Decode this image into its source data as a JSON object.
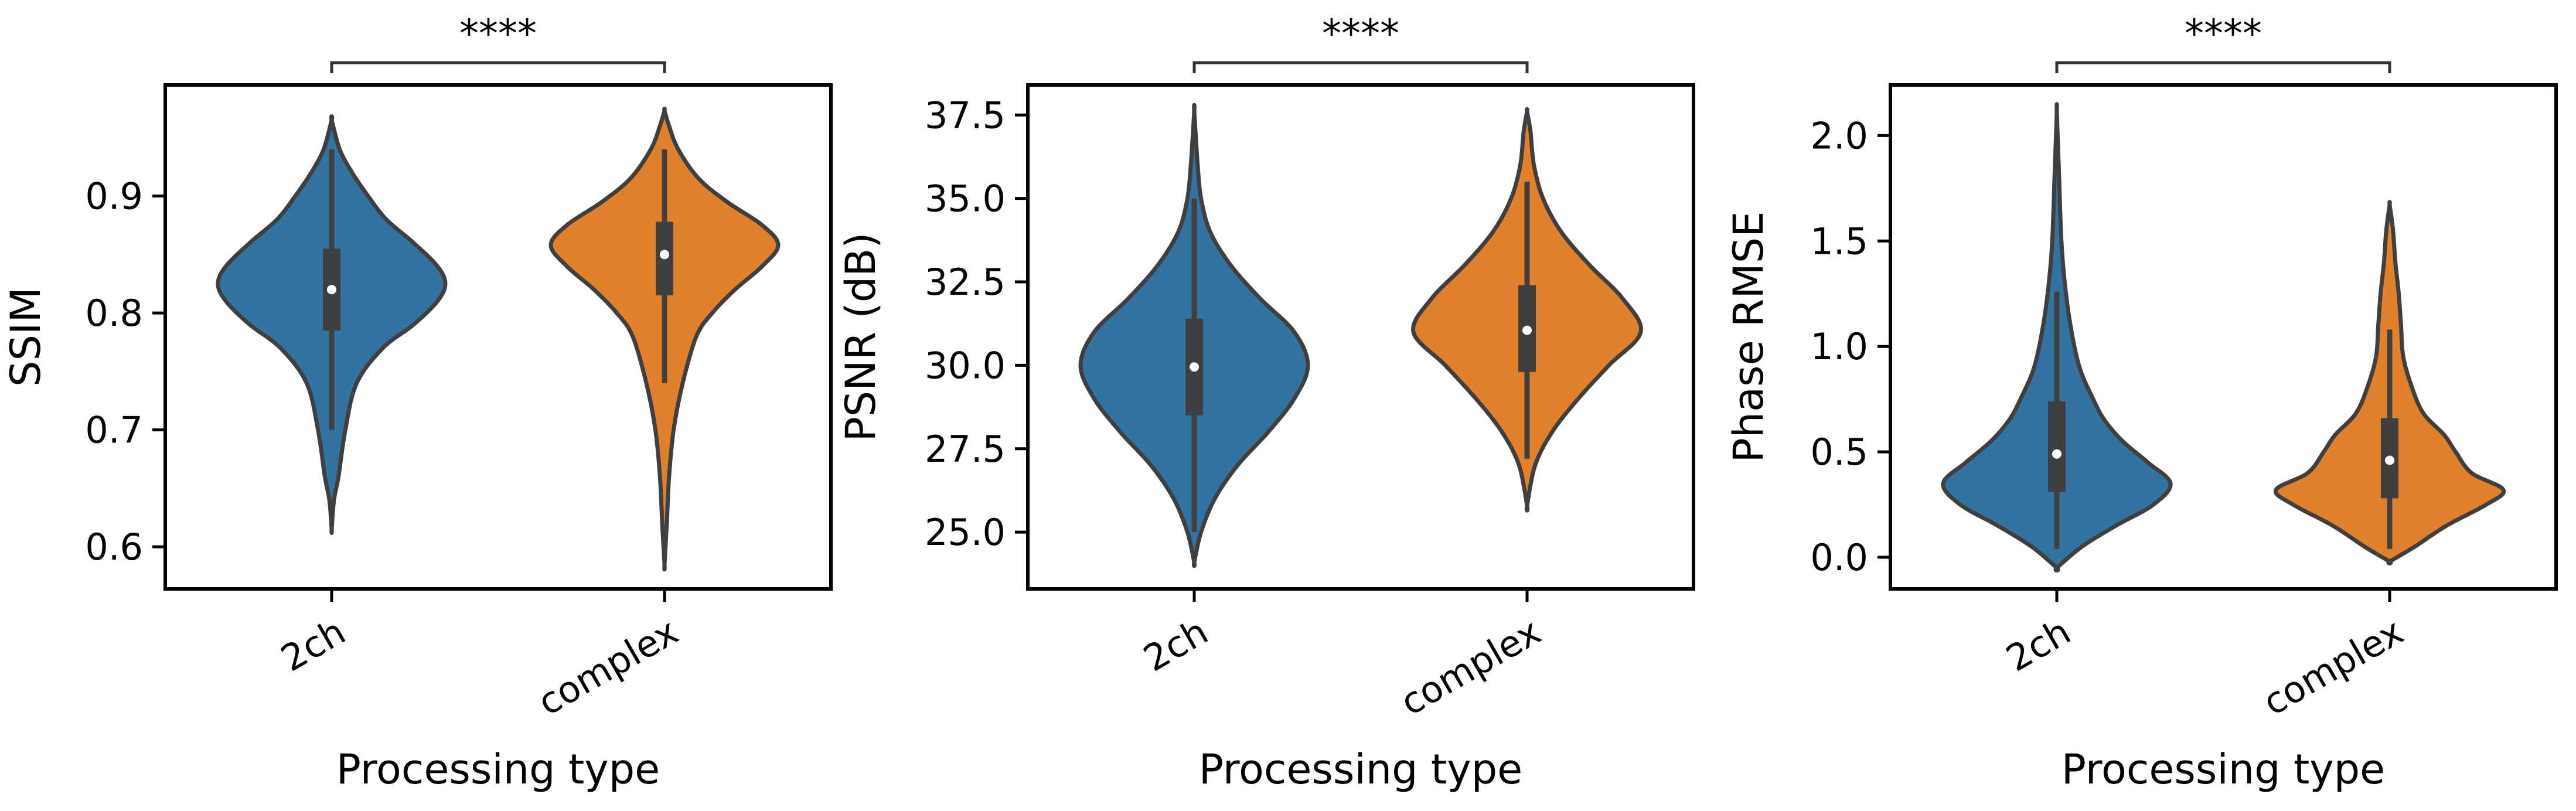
{
  "chart_data": [
    {
      "type": "violin",
      "xlabel": "Processing type",
      "ylabel": "SSIM",
      "categories": [
        "2ch",
        "complex"
      ],
      "ylim": [
        0.564,
        0.995
      ],
      "yticks": [
        0.6,
        0.7,
        0.8,
        0.9
      ],
      "ytick_labels": [
        "0.6",
        "0.7",
        "0.8",
        "0.9"
      ],
      "significance": {
        "pair": [
          "2ch",
          "complex"
        ],
        "label": "****"
      },
      "series": [
        {
          "name": "2ch",
          "color": "#3274a1",
          "median": 0.82,
          "q1": 0.785,
          "q3": 0.855,
          "whisker_low": 0.7,
          "whisker_high": 0.94,
          "density": [
            [
              0.615,
              0.0
            ],
            [
              0.64,
              0.02
            ],
            [
              0.66,
              0.06
            ],
            [
              0.7,
              0.12
            ],
            [
              0.74,
              0.22
            ],
            [
              0.77,
              0.45
            ],
            [
              0.79,
              0.72
            ],
            [
              0.81,
              0.93
            ],
            [
              0.825,
              1.0
            ],
            [
              0.84,
              0.93
            ],
            [
              0.86,
              0.72
            ],
            [
              0.88,
              0.48
            ],
            [
              0.9,
              0.32
            ],
            [
              0.92,
              0.18
            ],
            [
              0.94,
              0.07
            ],
            [
              0.965,
              0.0
            ]
          ]
        },
        {
          "name": "complex",
          "color": "#e1812c",
          "median": 0.85,
          "q1": 0.815,
          "q3": 0.878,
          "whisker_low": 0.74,
          "whisker_high": 0.94,
          "density": [
            [
              0.585,
              0.0
            ],
            [
              0.62,
              0.02
            ],
            [
              0.66,
              0.04
            ],
            [
              0.7,
              0.08
            ],
            [
              0.74,
              0.16
            ],
            [
              0.78,
              0.28
            ],
            [
              0.8,
              0.42
            ],
            [
              0.82,
              0.62
            ],
            [
              0.84,
              0.86
            ],
            [
              0.858,
              1.0
            ],
            [
              0.875,
              0.86
            ],
            [
              0.895,
              0.55
            ],
            [
              0.915,
              0.3
            ],
            [
              0.94,
              0.12
            ],
            [
              0.96,
              0.04
            ],
            [
              0.973,
              0.0
            ]
          ]
        }
      ]
    },
    {
      "type": "violin",
      "xlabel": "Processing type",
      "ylabel": "PSNR (dB)",
      "categories": [
        "2ch",
        "complex"
      ],
      "ylim": [
        23.3,
        38.4
      ],
      "yticks": [
        25.0,
        27.5,
        30.0,
        32.5,
        35.0,
        37.5
      ],
      "ytick_labels": [
        "25.0",
        "27.5",
        "30.0",
        "32.5",
        "35.0",
        "37.5"
      ],
      "significance": {
        "pair": [
          "2ch",
          "complex"
        ],
        "label": "****"
      },
      "series": [
        {
          "name": "2ch",
          "color": "#3274a1",
          "median": 29.95,
          "q1": 28.5,
          "q3": 31.4,
          "whisker_low": 25.0,
          "whisker_high": 35.0,
          "density": [
            [
              24.1,
              0.0
            ],
            [
              25.0,
              0.06
            ],
            [
              26.0,
              0.18
            ],
            [
              27.0,
              0.38
            ],
            [
              28.0,
              0.65
            ],
            [
              29.0,
              0.88
            ],
            [
              30.0,
              1.0
            ],
            [
              31.0,
              0.88
            ],
            [
              32.0,
              0.58
            ],
            [
              33.0,
              0.32
            ],
            [
              34.0,
              0.14
            ],
            [
              35.0,
              0.06
            ],
            [
              36.0,
              0.03
            ],
            [
              37.6,
              0.0
            ]
          ]
        },
        {
          "name": "complex",
          "color": "#e1812c",
          "median": 31.05,
          "q1": 29.8,
          "q3": 32.4,
          "whisker_low": 27.2,
          "whisker_high": 35.5,
          "density": [
            [
              25.8,
              0.0
            ],
            [
              27.0,
              0.07
            ],
            [
              28.0,
              0.22
            ],
            [
              29.0,
              0.45
            ],
            [
              30.0,
              0.72
            ],
            [
              31.0,
              1.0
            ],
            [
              32.0,
              0.84
            ],
            [
              33.0,
              0.55
            ],
            [
              34.0,
              0.3
            ],
            [
              35.0,
              0.14
            ],
            [
              36.0,
              0.06
            ],
            [
              37.0,
              0.03
            ],
            [
              37.6,
              0.0
            ]
          ]
        }
      ]
    },
    {
      "type": "violin",
      "xlabel": "Processing type",
      "ylabel": "Phase RMSE",
      "categories": [
        "2ch",
        "complex"
      ],
      "ylim": [
        -0.15,
        2.24
      ],
      "yticks": [
        0.0,
        0.5,
        1.0,
        1.5,
        2.0
      ],
      "ytick_labels": [
        "0.0",
        "0.5",
        "1.0",
        "1.5",
        "2.0"
      ],
      "significance": {
        "pair": [
          "2ch",
          "complex"
        ],
        "label": "****"
      },
      "series": [
        {
          "name": "2ch",
          "color": "#3274a1",
          "median": 0.49,
          "q1": 0.31,
          "q3": 0.74,
          "whisker_low": 0.04,
          "whisker_high": 1.26,
          "density": [
            [
              -0.05,
              0.0
            ],
            [
              0.05,
              0.22
            ],
            [
              0.15,
              0.52
            ],
            [
              0.25,
              0.85
            ],
            [
              0.35,
              1.0
            ],
            [
              0.45,
              0.8
            ],
            [
              0.55,
              0.58
            ],
            [
              0.65,
              0.42
            ],
            [
              0.75,
              0.32
            ],
            [
              0.9,
              0.2
            ],
            [
              1.1,
              0.12
            ],
            [
              1.3,
              0.07
            ],
            [
              1.5,
              0.04
            ],
            [
              1.8,
              0.02
            ],
            [
              2.11,
              0.0
            ]
          ]
        },
        {
          "name": "complex",
          "color": "#e1812c",
          "median": 0.46,
          "q1": 0.28,
          "q3": 0.66,
          "whisker_low": 0.04,
          "whisker_high": 1.08,
          "density": [
            [
              -0.02,
              0.0
            ],
            [
              0.05,
              0.22
            ],
            [
              0.15,
              0.5
            ],
            [
              0.25,
              0.85
            ],
            [
              0.32,
              1.0
            ],
            [
              0.4,
              0.72
            ],
            [
              0.5,
              0.58
            ],
            [
              0.58,
              0.48
            ],
            [
              0.68,
              0.3
            ],
            [
              0.8,
              0.2
            ],
            [
              0.95,
              0.12
            ],
            [
              1.1,
              0.1
            ],
            [
              1.25,
              0.08
            ],
            [
              1.4,
              0.05
            ],
            [
              1.55,
              0.03
            ],
            [
              1.67,
              0.0
            ]
          ]
        }
      ]
    }
  ]
}
